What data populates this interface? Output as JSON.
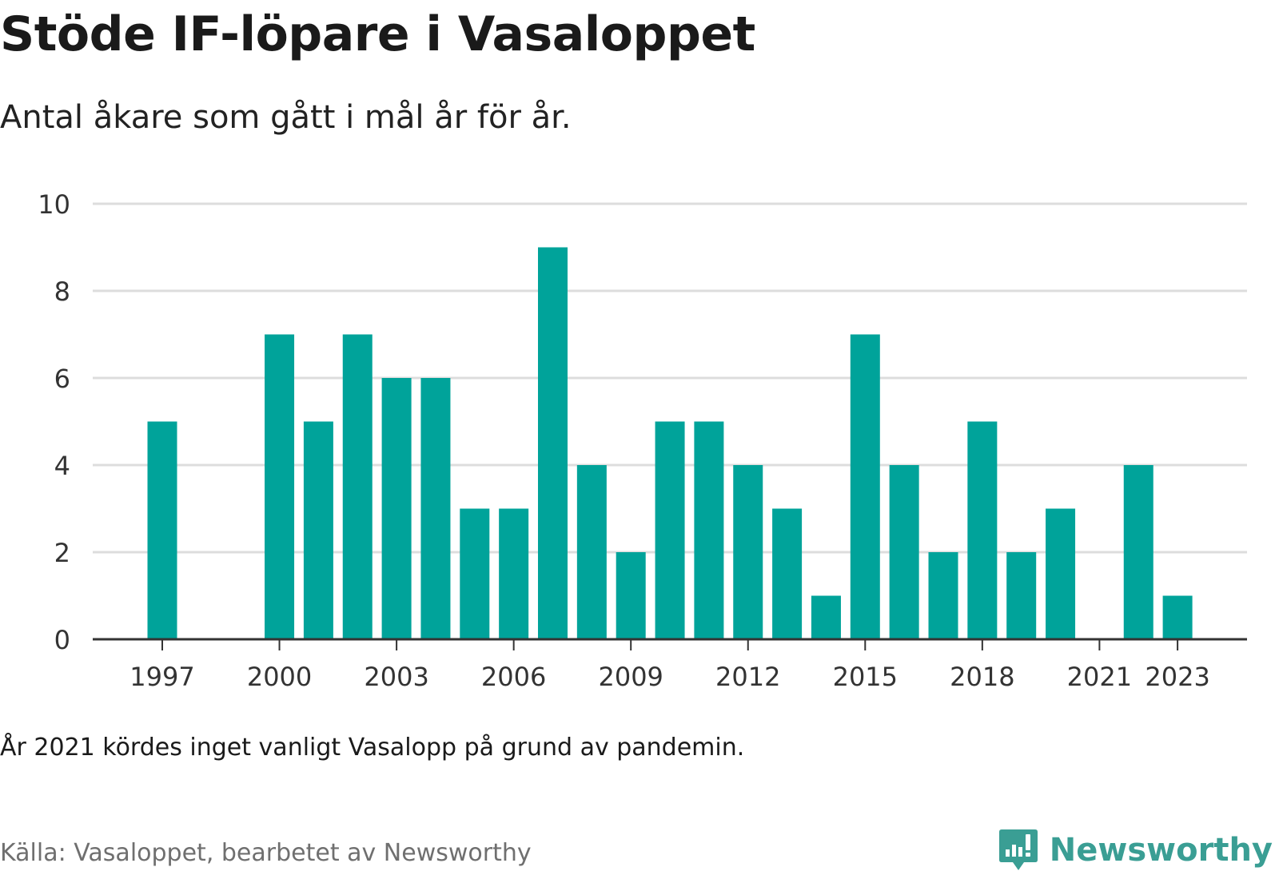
{
  "header": {
    "title": "Stöde IF-löpare i Vasaloppet",
    "subtitle": "Antal åkare som gått i mål år för år."
  },
  "footer": {
    "note": "År 2021 kördes inget vanligt Vasalopp på grund av pandemin.",
    "source": "Källa: Vasaloppet, bearbetet av Newsworthy",
    "brand": "Newsworthy",
    "brand_icon": "newsworthy-logo-icon"
  },
  "colors": {
    "bar": "#00a39a",
    "grid": "#dddddd",
    "axis": "#333333",
    "brand": "#3a9e94"
  },
  "chart_data": {
    "type": "bar",
    "categories": [
      1997,
      1998,
      1999,
      2000,
      2001,
      2002,
      2003,
      2004,
      2005,
      2006,
      2007,
      2008,
      2009,
      2010,
      2011,
      2012,
      2013,
      2014,
      2015,
      2016,
      2017,
      2018,
      2019,
      2020,
      2021,
      2022,
      2023
    ],
    "values": [
      5,
      0,
      0,
      7,
      5,
      7,
      6,
      6,
      3,
      3,
      9,
      4,
      2,
      5,
      5,
      4,
      3,
      1,
      7,
      4,
      2,
      5,
      2,
      3,
      0,
      4,
      1
    ],
    "x_tick_labels": [
      "1997",
      "2000",
      "2003",
      "2006",
      "2009",
      "2012",
      "2015",
      "2018",
      "2021",
      "2023"
    ],
    "y_ticks": [
      0,
      2,
      4,
      6,
      8,
      10
    ],
    "ylim": [
      0,
      10
    ],
    "grid": true,
    "xlabel": "",
    "ylabel": ""
  }
}
